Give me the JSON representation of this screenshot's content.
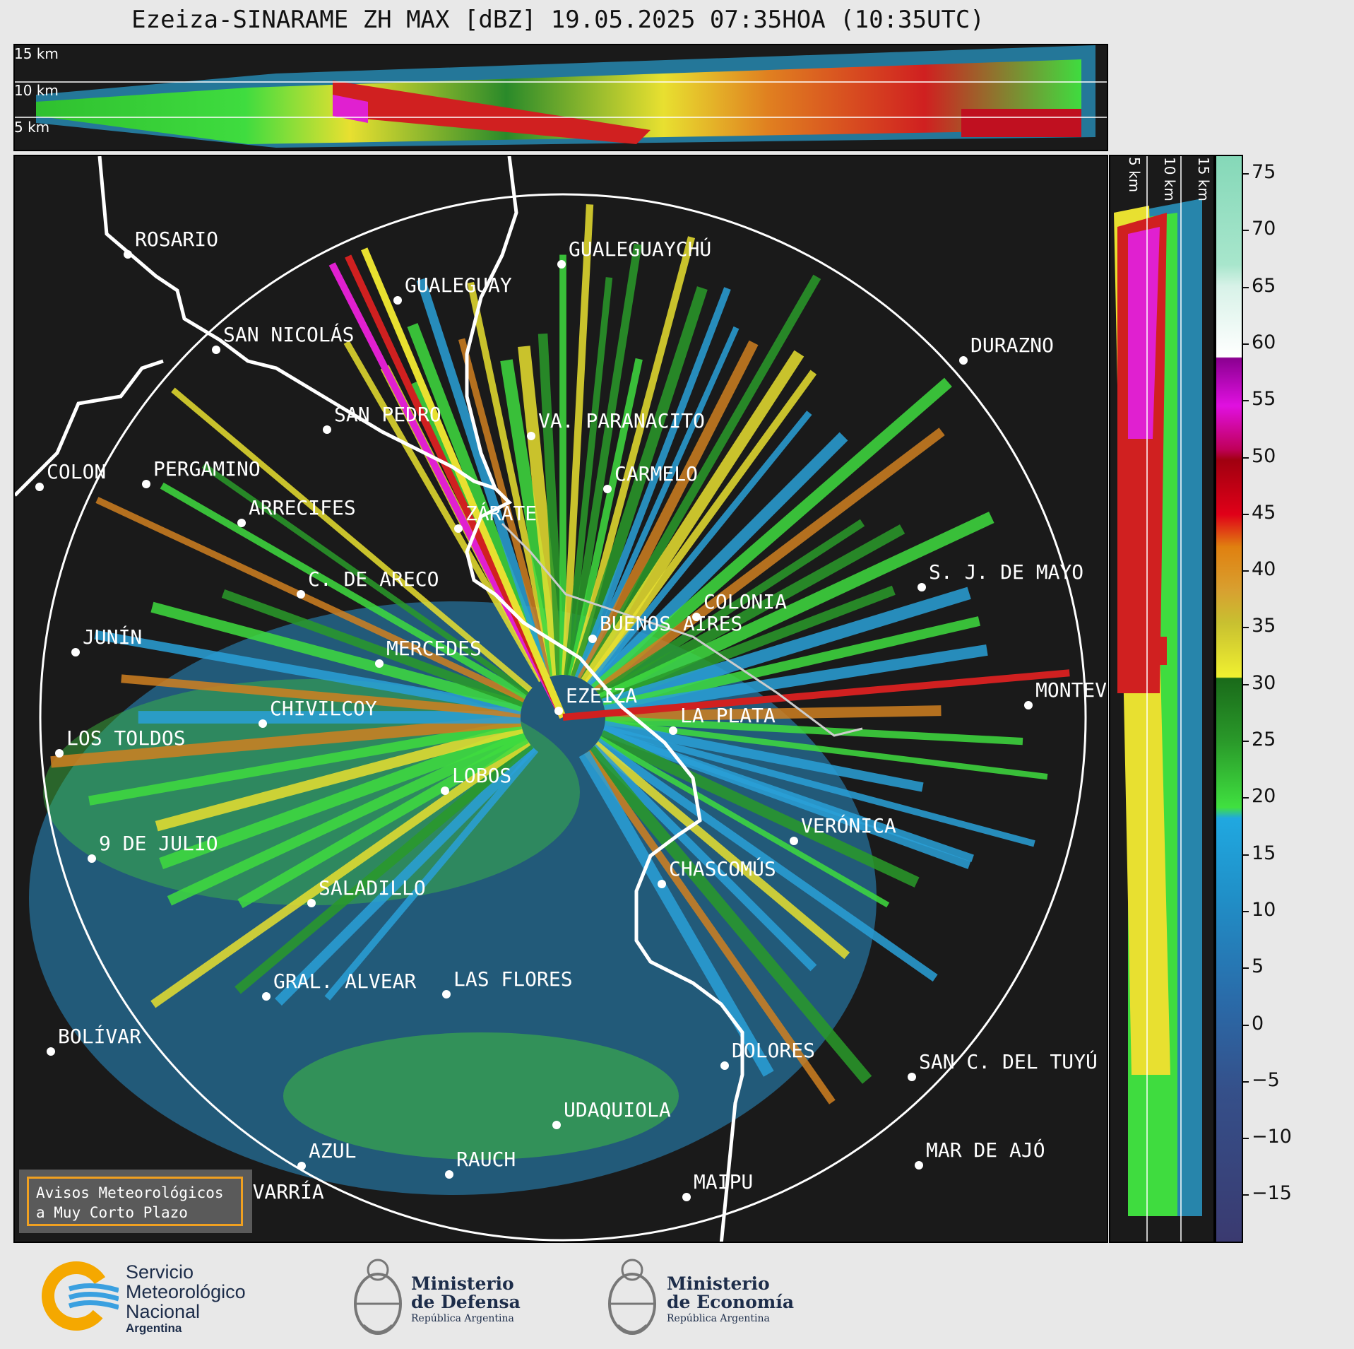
{
  "title": "Ezeiza-SINARAME ZH MAX [dBZ] 19.05.2025 07:35HOA (10:35UTC)",
  "top_altitude_labels": [
    "15 km",
    "10 km",
    "5 km"
  ],
  "side_altitude_labels": [
    "5 km",
    "10 km",
    "15 km"
  ],
  "colorbar": {
    "unit": "dBZ",
    "ticks": [
      "75",
      "70",
      "65",
      "60",
      "55",
      "50",
      "45",
      "40",
      "35",
      "30",
      "25",
      "20",
      "15",
      "10",
      "5",
      "0",
      "−5",
      "−10",
      "−15"
    ]
  },
  "cities": [
    {
      "name": "ROSARIO"
    },
    {
      "name": "GUALEGUAYCHÚ"
    },
    {
      "name": "GUALEGUAY"
    },
    {
      "name": "SAN NICOLÁS"
    },
    {
      "name": "DURAZNO"
    },
    {
      "name": "SAN PEDRO"
    },
    {
      "name": "VA. PARANACITO"
    },
    {
      "name": "COLON"
    },
    {
      "name": "PERGAMINO"
    },
    {
      "name": "CARMELO"
    },
    {
      "name": "ARRECIFES"
    },
    {
      "name": "ZÁRATE"
    },
    {
      "name": "S. J. DE MAYO"
    },
    {
      "name": "C. DE ARECO"
    },
    {
      "name": "COLONIA"
    },
    {
      "name": "JUNÍN"
    },
    {
      "name": "MERCEDES"
    },
    {
      "name": "BUENOS AIRES"
    },
    {
      "name": "EZEIZA"
    },
    {
      "name": "MONTEVIDEO"
    },
    {
      "name": "CHIVILCOY"
    },
    {
      "name": "LA PLATA"
    },
    {
      "name": "LOS TOLDOS"
    },
    {
      "name": "LOBOS"
    },
    {
      "name": "VERÓNICA"
    },
    {
      "name": "9 DE JULIO"
    },
    {
      "name": "CHASCOMÚS"
    },
    {
      "name": "SALADILLO"
    },
    {
      "name": "GRAL. ALVEAR"
    },
    {
      "name": "LAS FLORES"
    },
    {
      "name": "BOLÍVAR"
    },
    {
      "name": "DOLORES"
    },
    {
      "name": "SAN C. DEL TUYÚ"
    },
    {
      "name": "UDAQUIOLA"
    },
    {
      "name": "MAR DE AJÓ"
    },
    {
      "name": "AZUL"
    },
    {
      "name": "RAUCH"
    },
    {
      "name": "OLAVARRÍA"
    },
    {
      "name": "MAIPU"
    }
  ],
  "warning_box": {
    "line1": "Avisos Meteorológicos",
    "line2": "a Muy Corto Plazo"
  },
  "logos": {
    "smn": {
      "line1": "Servicio",
      "line2": "Meteorológico",
      "line3": "Nacional",
      "line4": "Argentina"
    },
    "defensa": {
      "line1": "Ministerio",
      "line2": "de Defensa",
      "line3": "República Argentina"
    },
    "economia": {
      "line1": "Ministerio",
      "line2": "de Economía",
      "line3": "República Argentina"
    }
  }
}
